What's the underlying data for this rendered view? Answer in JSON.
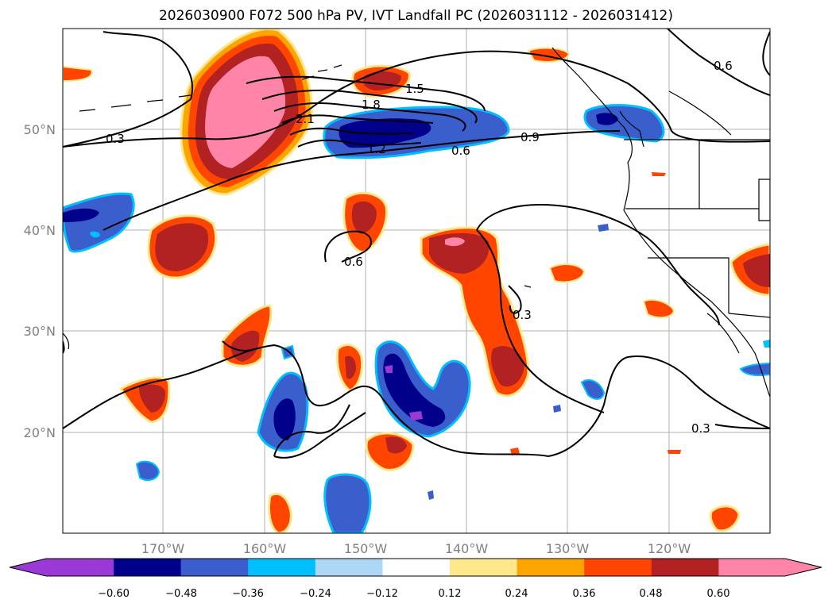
{
  "title": "2026030900 F072 500 hPa PV, IVT Landfall PC (2026031112 - 2026031412)",
  "map": {
    "lat_labels": [
      "50°N",
      "40°N",
      "30°N",
      "20°N"
    ],
    "lon_labels": [
      "170°W",
      "160°W",
      "150°W",
      "140°W",
      "130°W",
      "120°W"
    ],
    "contour_labels": [
      "0.3",
      "0.6",
      "0.9",
      "1.2",
      "1.5",
      "1.8",
      "2.1",
      "0.6",
      "0.3",
      "0.3",
      "0.6"
    ],
    "colors": {
      "purple": "#9b39d6",
      "navy": "#00008b",
      "royal_blue": "#3a5fcd",
      "deep_sky": "#00bfff",
      "light_blue": "#add8f5",
      "yellow": "#ffe88c",
      "orange": "#ffa500",
      "red_orange": "#ff4500",
      "firebrick": "#b22222",
      "pink": "#ff85a8"
    }
  },
  "colorbar": {
    "ticks": [
      "−0.60",
      "−0.48",
      "−0.36",
      "−0.24",
      "−0.12",
      "0.12",
      "0.24",
      "0.36",
      "0.48",
      "0.60"
    ],
    "bins": [
      "#9b39d6",
      "#00008b",
      "#3a5fcd",
      "#00bfff",
      "#add8f5",
      "#ffffff",
      "#ffe88c",
      "#ffa500",
      "#ff4500",
      "#b22222",
      "#ff85a8"
    ]
  }
}
